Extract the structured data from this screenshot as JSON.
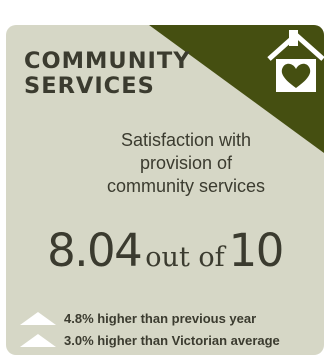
{
  "card": {
    "title_lines": [
      "COMMUNITY",
      "SERVICES"
    ],
    "subtitle_lines": [
      "Satisfaction with",
      "provision of",
      "community services"
    ],
    "score": {
      "value": "8.04",
      "connector": "out of",
      "max": "10"
    },
    "comparisons": [
      {
        "text": "4.8% higher than previous year",
        "icon": "up-triangle-icon"
      },
      {
        "text": "3.0% higher than Victorian average",
        "icon": "up-triangle-icon"
      }
    ]
  },
  "icons": {
    "corner_icon": "house-heart-icon"
  },
  "colors": {
    "card_background": "#d6d7c6",
    "corner_banner": "#454f11",
    "text": "#3b3b2f",
    "icon": "#ffffff"
  }
}
